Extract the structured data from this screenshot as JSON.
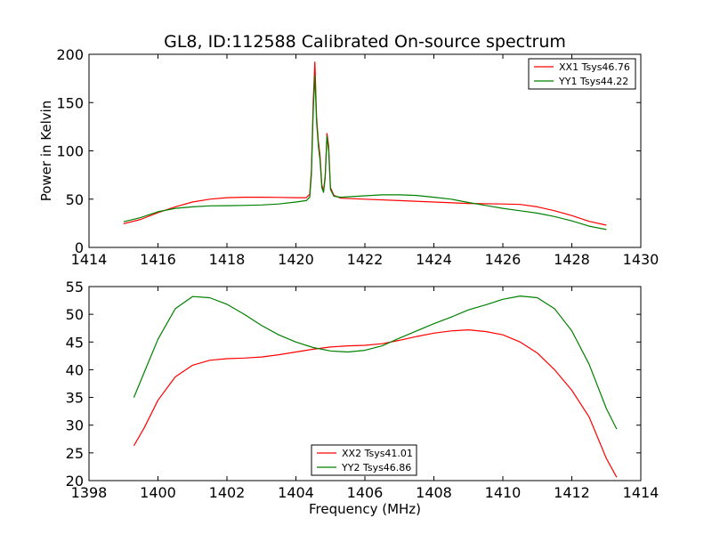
{
  "title": "GL8, ID:112588 Calibrated On-source spectrum",
  "chart_data": [
    {
      "type": "line",
      "ylabel": "Power in Kelvin",
      "xlabel": "",
      "xlim": [
        1414,
        1430
      ],
      "ylim": [
        0,
        200
      ],
      "xticks": [
        1414,
        1416,
        1418,
        1420,
        1422,
        1424,
        1426,
        1428,
        1430
      ],
      "yticks": [
        0,
        50,
        100,
        150,
        200
      ],
      "grid": false,
      "legend_position": "top-right",
      "series": [
        {
          "name": "XX1 Tsys46.76",
          "color": "#ff0000",
          "points": [
            [
              1415.0,
              24.5
            ],
            [
              1415.5,
              29
            ],
            [
              1416.0,
              36
            ],
            [
              1416.5,
              42
            ],
            [
              1417.0,
              47
            ],
            [
              1417.5,
              50
            ],
            [
              1418.0,
              51.5
            ],
            [
              1418.5,
              52
            ],
            [
              1419.0,
              52
            ],
            [
              1419.5,
              51.8
            ],
            [
              1420.0,
              51.5
            ],
            [
              1420.3,
              51.5
            ],
            [
              1420.4,
              55
            ],
            [
              1420.45,
              80
            ],
            [
              1420.5,
              150
            ],
            [
              1420.55,
              192
            ],
            [
              1420.6,
              135
            ],
            [
              1420.65,
              110
            ],
            [
              1420.7,
              95
            ],
            [
              1420.75,
              65
            ],
            [
              1420.8,
              58
            ],
            [
              1420.85,
              75
            ],
            [
              1420.9,
              118
            ],
            [
              1420.95,
              105
            ],
            [
              1421.0,
              62
            ],
            [
              1421.1,
              54
            ],
            [
              1421.3,
              51
            ],
            [
              1422.0,
              50
            ],
            [
              1423.0,
              48.5
            ],
            [
              1424.0,
              47
            ],
            [
              1425.0,
              45.5
            ],
            [
              1426.0,
              45
            ],
            [
              1426.5,
              44.5
            ],
            [
              1427.0,
              42
            ],
            [
              1427.5,
              38
            ],
            [
              1428.0,
              33
            ],
            [
              1428.5,
              27
            ],
            [
              1429.0,
              23
            ]
          ]
        },
        {
          "name": "YY1 Tsys44.22",
          "color": "#008000",
          "points": [
            [
              1415.0,
              26.5
            ],
            [
              1415.5,
              31
            ],
            [
              1416.0,
              37
            ],
            [
              1416.5,
              40.5
            ],
            [
              1417.0,
              42
            ],
            [
              1417.5,
              43
            ],
            [
              1418.0,
              43.2
            ],
            [
              1418.5,
              43.5
            ],
            [
              1419.0,
              44
            ],
            [
              1419.5,
              45
            ],
            [
              1420.0,
              47
            ],
            [
              1420.3,
              48.5
            ],
            [
              1420.4,
              52
            ],
            [
              1420.45,
              75
            ],
            [
              1420.5,
              140
            ],
            [
              1420.55,
              178
            ],
            [
              1420.6,
              130
            ],
            [
              1420.65,
              105
            ],
            [
              1420.7,
              90
            ],
            [
              1420.75,
              62
            ],
            [
              1420.8,
              57
            ],
            [
              1420.85,
              72
            ],
            [
              1420.9,
              115
            ],
            [
              1420.95,
              100
            ],
            [
              1421.0,
              60
            ],
            [
              1421.1,
              53
            ],
            [
              1421.3,
              52
            ],
            [
              1422.0,
              53.5
            ],
            [
              1422.5,
              54.5
            ],
            [
              1423.0,
              54.5
            ],
            [
              1423.5,
              53.8
            ],
            [
              1424.0,
              52
            ],
            [
              1424.5,
              50
            ],
            [
              1425.0,
              46.5
            ],
            [
              1425.5,
              43.5
            ],
            [
              1426.0,
              40.5
            ],
            [
              1426.5,
              38
            ],
            [
              1427.0,
              35.5
            ],
            [
              1427.5,
              32
            ],
            [
              1428.0,
              27.5
            ],
            [
              1428.5,
              22
            ],
            [
              1429.0,
              18.5
            ]
          ]
        }
      ]
    },
    {
      "type": "line",
      "ylabel": "",
      "xlabel": "Frequency (MHz)",
      "xlim": [
        1398,
        1414
      ],
      "ylim": [
        20,
        55
      ],
      "xticks": [
        1398,
        1400,
        1402,
        1404,
        1406,
        1408,
        1410,
        1412,
        1414
      ],
      "yticks": [
        20,
        25,
        30,
        35,
        40,
        45,
        50,
        55
      ],
      "grid": false,
      "legend_position": "bottom-center",
      "series": [
        {
          "name": "XX2 Tsys41.01",
          "color": "#ff0000",
          "points": [
            [
              1399.3,
              26.3
            ],
            [
              1399.6,
              29.5
            ],
            [
              1400.0,
              34.5
            ],
            [
              1400.5,
              38.7
            ],
            [
              1401.0,
              40.8
            ],
            [
              1401.5,
              41.7
            ],
            [
              1402.0,
              42.0
            ],
            [
              1402.5,
              42.1
            ],
            [
              1403.0,
              42.3
            ],
            [
              1403.5,
              42.7
            ],
            [
              1404.0,
              43.2
            ],
            [
              1404.5,
              43.7
            ],
            [
              1405.0,
              44.1
            ],
            [
              1405.5,
              44.3
            ],
            [
              1406.0,
              44.4
            ],
            [
              1406.5,
              44.7
            ],
            [
              1407.0,
              45.3
            ],
            [
              1407.5,
              46.0
            ],
            [
              1408.0,
              46.6
            ],
            [
              1408.5,
              47.0
            ],
            [
              1409.0,
              47.2
            ],
            [
              1409.5,
              46.9
            ],
            [
              1410.0,
              46.3
            ],
            [
              1410.5,
              45.0
            ],
            [
              1411.0,
              43.0
            ],
            [
              1411.5,
              40.0
            ],
            [
              1412.0,
              36.3
            ],
            [
              1412.5,
              31.5
            ],
            [
              1413.0,
              24.0
            ],
            [
              1413.3,
              20.6
            ]
          ]
        },
        {
          "name": "YY2 Tsys46.86",
          "color": "#008000",
          "points": [
            [
              1399.3,
              35.0
            ],
            [
              1399.6,
              39.5
            ],
            [
              1400.0,
              45.5
            ],
            [
              1400.5,
              51.0
            ],
            [
              1401.0,
              53.2
            ],
            [
              1401.5,
              53.0
            ],
            [
              1402.0,
              51.8
            ],
            [
              1402.5,
              50.0
            ],
            [
              1403.0,
              48.0
            ],
            [
              1403.5,
              46.3
            ],
            [
              1404.0,
              45.0
            ],
            [
              1404.5,
              44.0
            ],
            [
              1405.0,
              43.4
            ],
            [
              1405.5,
              43.2
            ],
            [
              1406.0,
              43.5
            ],
            [
              1406.5,
              44.3
            ],
            [
              1407.0,
              45.7
            ],
            [
              1407.5,
              47.0
            ],
            [
              1408.0,
              48.3
            ],
            [
              1408.5,
              49.5
            ],
            [
              1409.0,
              50.8
            ],
            [
              1409.5,
              51.7
            ],
            [
              1410.0,
              52.7
            ],
            [
              1410.5,
              53.3
            ],
            [
              1411.0,
              53.0
            ],
            [
              1411.5,
              51.0
            ],
            [
              1412.0,
              47.0
            ],
            [
              1412.5,
              41.0
            ],
            [
              1413.0,
              33.0
            ],
            [
              1413.3,
              29.3
            ]
          ]
        }
      ]
    }
  ]
}
